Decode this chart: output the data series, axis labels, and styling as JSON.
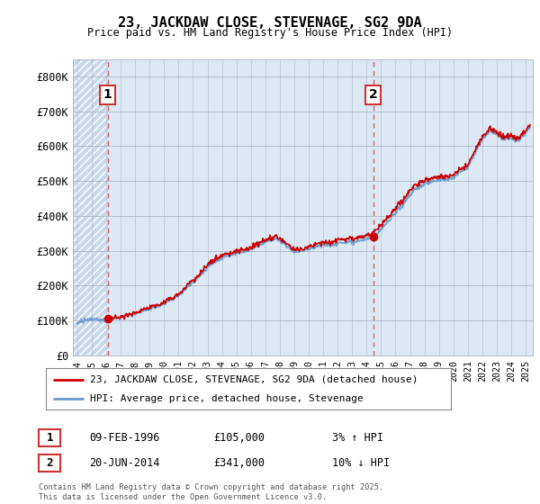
{
  "title": "23, JACKDAW CLOSE, STEVENAGE, SG2 9DA",
  "subtitle": "Price paid vs. HM Land Registry's House Price Index (HPI)",
  "legend_label_red": "23, JACKDAW CLOSE, STEVENAGE, SG2 9DA (detached house)",
  "legend_label_blue": "HPI: Average price, detached house, Stevenage",
  "annotation1_date": "09-FEB-1996",
  "annotation1_price": "£105,000",
  "annotation1_hpi": "3% ↑ HPI",
  "annotation2_date": "20-JUN-2014",
  "annotation2_price": "£341,000",
  "annotation2_hpi": "10% ↓ HPI",
  "footer": "Contains HM Land Registry data © Crown copyright and database right 2025.\nThis data is licensed under the Open Government Licence v3.0.",
  "ymax": 850000,
  "yticks": [
    0,
    100000,
    200000,
    300000,
    400000,
    500000,
    600000,
    700000,
    800000
  ],
  "ytick_labels": [
    "£0",
    "£100K",
    "£200K",
    "£300K",
    "£400K",
    "£500K",
    "£600K",
    "£700K",
    "£800K"
  ],
  "xmin": 1993.7,
  "xmax": 2025.5,
  "sale1_year": 1996.1,
  "sale1_price": 105000,
  "sale2_year": 2014.45,
  "sale2_price": 341000,
  "hatch_xmin": 1993.7,
  "vline1_x": 1996.1,
  "vline2_x": 2014.45,
  "background_color": "#ffffff",
  "plot_bg_color": "#dce9f5",
  "hatch_bg_color": "#c8daea",
  "grid_color": "#b0b8c8",
  "red_line_color": "#cc0000",
  "blue_line_color": "#6699cc",
  "vline_color": "#dd4444",
  "annotation_box_color": "#cc3333"
}
